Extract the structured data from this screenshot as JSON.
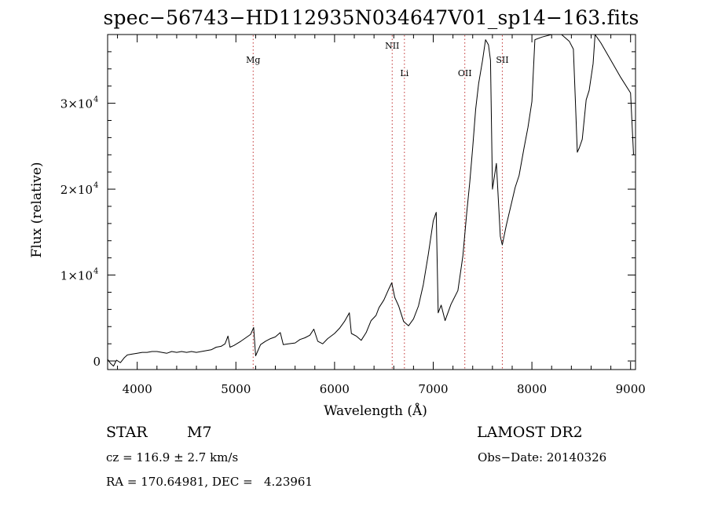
{
  "chart_data": {
    "type": "line",
    "title": "spec−56743−HD112935N034647V01_sp14−163.fits",
    "xlabel": "Wavelength (Å)",
    "ylabel": "Flux (relative)",
    "xlim": [
      3700,
      9050
    ],
    "ylim": [
      -1000,
      38000
    ],
    "x_ticks": [
      4000,
      5000,
      6000,
      7000,
      8000,
      9000
    ],
    "y_ticks": [
      {
        "value": 0,
        "label": "0",
        "exp": ""
      },
      {
        "value": 10000,
        "label": "1×10",
        "exp": "4"
      },
      {
        "value": 20000,
        "label": "2×10",
        "exp": "4"
      },
      {
        "value": 30000,
        "label": "3×10",
        "exp": "4"
      }
    ],
    "grid": false,
    "lines": [
      {
        "label": "Mg",
        "wavelength": 5175
      },
      {
        "label": "NII",
        "wavelength": 6584
      },
      {
        "label": "Li",
        "wavelength": 6708
      },
      {
        "label": "OII",
        "wavelength": 7320
      },
      {
        "label": "SII",
        "wavelength": 7700
      }
    ],
    "series": [
      {
        "values": [
          [
            3700,
            200
          ],
          [
            3730,
            -300
          ],
          [
            3760,
            -600
          ],
          [
            3790,
            100
          ],
          [
            3830,
            -200
          ],
          [
            3870,
            400
          ],
          [
            3900,
            700
          ],
          [
            3950,
            800
          ],
          [
            4000,
            900
          ],
          [
            4050,
            1000
          ],
          [
            4100,
            1000
          ],
          [
            4150,
            1100
          ],
          [
            4200,
            1100
          ],
          [
            4250,
            1000
          ],
          [
            4300,
            900
          ],
          [
            4350,
            1100
          ],
          [
            4400,
            1000
          ],
          [
            4450,
            1100
          ],
          [
            4500,
            1000
          ],
          [
            4550,
            1100
          ],
          [
            4600,
            1000
          ],
          [
            4650,
            1100
          ],
          [
            4700,
            1200
          ],
          [
            4750,
            1300
          ],
          [
            4800,
            1600
          ],
          [
            4850,
            1700
          ],
          [
            4890,
            2000
          ],
          [
            4920,
            2900
          ],
          [
            4940,
            1600
          ],
          [
            4980,
            1800
          ],
          [
            5050,
            2300
          ],
          [
            5100,
            2700
          ],
          [
            5150,
            3100
          ],
          [
            5180,
            3900
          ],
          [
            5200,
            600
          ],
          [
            5250,
            1900
          ],
          [
            5300,
            2300
          ],
          [
            5350,
            2600
          ],
          [
            5400,
            2800
          ],
          [
            5450,
            3300
          ],
          [
            5480,
            1900
          ],
          [
            5530,
            2000
          ],
          [
            5600,
            2100
          ],
          [
            5650,
            2500
          ],
          [
            5700,
            2700
          ],
          [
            5750,
            3000
          ],
          [
            5790,
            3700
          ],
          [
            5830,
            2300
          ],
          [
            5880,
            2000
          ],
          [
            5930,
            2600
          ],
          [
            6000,
            3200
          ],
          [
            6050,
            3800
          ],
          [
            6100,
            4600
          ],
          [
            6150,
            5600
          ],
          [
            6170,
            3200
          ],
          [
            6220,
            2900
          ],
          [
            6270,
            2400
          ],
          [
            6320,
            3300
          ],
          [
            6370,
            4700
          ],
          [
            6420,
            5300
          ],
          [
            6450,
            6200
          ],
          [
            6500,
            7100
          ],
          [
            6550,
            8400
          ],
          [
            6580,
            9100
          ],
          [
            6610,
            7400
          ],
          [
            6650,
            6400
          ],
          [
            6700,
            4600
          ],
          [
            6750,
            4100
          ],
          [
            6800,
            4900
          ],
          [
            6850,
            6400
          ],
          [
            6900,
            8900
          ],
          [
            6950,
            12400
          ],
          [
            7000,
            16300
          ],
          [
            7030,
            17300
          ],
          [
            7050,
            5600
          ],
          [
            7080,
            6500
          ],
          [
            7120,
            4700
          ],
          [
            7180,
            6600
          ],
          [
            7250,
            8200
          ],
          [
            7300,
            12200
          ],
          [
            7340,
            17300
          ],
          [
            7370,
            20800
          ],
          [
            7400,
            24800
          ],
          [
            7430,
            29300
          ],
          [
            7460,
            32300
          ],
          [
            7500,
            35000
          ],
          [
            7530,
            37400
          ],
          [
            7560,
            36800
          ],
          [
            7580,
            35000
          ],
          [
            7600,
            20000
          ],
          [
            7640,
            23000
          ],
          [
            7680,
            14500
          ],
          [
            7700,
            13500
          ],
          [
            7740,
            15800
          ],
          [
            7790,
            18200
          ],
          [
            7830,
            20200
          ],
          [
            7870,
            21600
          ],
          [
            7920,
            24800
          ],
          [
            7960,
            27200
          ],
          [
            8000,
            30200
          ],
          [
            8030,
            37400
          ],
          [
            8100,
            37700
          ],
          [
            8200,
            38000
          ],
          [
            8300,
            38000
          ],
          [
            8380,
            37200
          ],
          [
            8420,
            36300
          ],
          [
            8440,
            30400
          ],
          [
            8460,
            24300
          ],
          [
            8480,
            24800
          ],
          [
            8510,
            25800
          ],
          [
            8550,
            30400
          ],
          [
            8580,
            31500
          ],
          [
            8620,
            34600
          ],
          [
            8640,
            38000
          ],
          [
            8700,
            37000
          ],
          [
            8800,
            35000
          ],
          [
            8900,
            33000
          ],
          [
            9000,
            31200
          ],
          [
            9030,
            24000
          ]
        ]
      }
    ]
  },
  "info": {
    "object_type": "STAR",
    "subclass": "M7",
    "survey": "LAMOST DR2",
    "cz": "cz = 116.9 ± 2.7 km/s",
    "obs_date": "Obs−Date: 20140326",
    "coords": "RA = 170.64981, DEC =   4.23961"
  }
}
